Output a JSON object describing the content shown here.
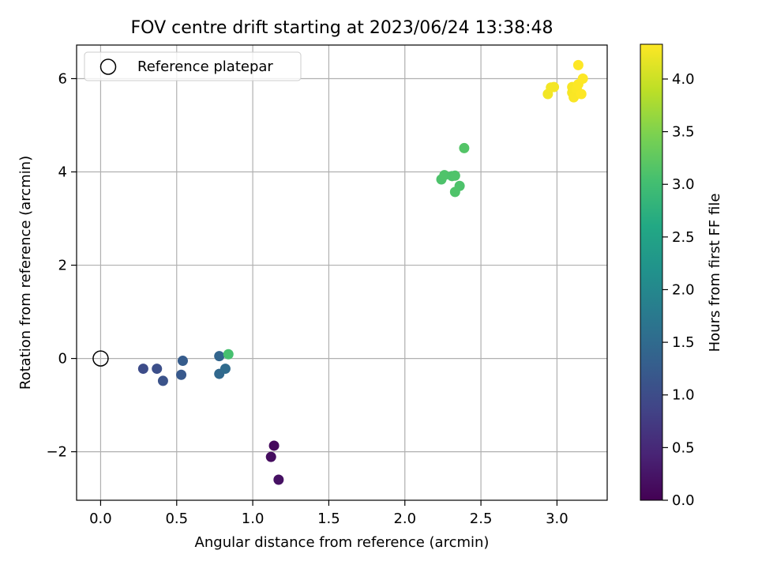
{
  "chart_data": {
    "type": "scatter",
    "title": "FOV centre drift starting at 2023/06/24 13:38:48",
    "xlabel": "Angular distance from reference (arcmin)",
    "ylabel": "Rotation from reference (arcmin)",
    "xlim": [
      -0.158,
      3.33
    ],
    "ylim": [
      -3.04,
      6.72
    ],
    "xticks": [
      0.0,
      0.5,
      1.0,
      1.5,
      2.0,
      2.5,
      3.0
    ],
    "xtick_labels": [
      "0.0",
      "0.5",
      "1.0",
      "1.5",
      "2.0",
      "2.5",
      "3.0"
    ],
    "yticks": [
      -2,
      0,
      2,
      4,
      6
    ],
    "ytick_labels": [
      "−2",
      "0",
      "2",
      "4",
      "6"
    ],
    "grid": true,
    "legend": {
      "location": "upper-left",
      "entries": [
        "Reference platepar"
      ]
    },
    "reference_point": {
      "x": 0.0,
      "y": 0.0
    },
    "colorbar": {
      "label": "Hours from first FF file",
      "colormap": "viridis",
      "range": [
        0.0,
        4.33
      ],
      "ticks": [
        0.0,
        0.5,
        1.0,
        1.5,
        2.0,
        2.5,
        3.0,
        3.5,
        4.0
      ],
      "tick_labels": [
        "0.0",
        "0.5",
        "1.0",
        "1.5",
        "2.0",
        "2.5",
        "3.0",
        "3.5",
        "4.0"
      ]
    },
    "points": [
      {
        "x": 1.14,
        "y": -1.87,
        "c": 0.1
      },
      {
        "x": 1.12,
        "y": -2.11,
        "c": 0.15
      },
      {
        "x": 1.17,
        "y": -2.6,
        "c": 0.2
      },
      {
        "x": 0.28,
        "y": -0.22,
        "c": 1.0
      },
      {
        "x": 0.37,
        "y": -0.22,
        "c": 1.05
      },
      {
        "x": 0.41,
        "y": -0.48,
        "c": 1.1
      },
      {
        "x": 0.53,
        "y": -0.35,
        "c": 1.2
      },
      {
        "x": 0.54,
        "y": -0.05,
        "c": 1.25
      },
      {
        "x": 0.78,
        "y": 0.05,
        "c": 1.4
      },
      {
        "x": 0.78,
        "y": -0.33,
        "c": 1.45
      },
      {
        "x": 0.82,
        "y": -0.22,
        "c": 1.5
      },
      {
        "x": 0.84,
        "y": 0.09,
        "c": 3.05
      },
      {
        "x": 2.24,
        "y": 3.84,
        "c": 3.1
      },
      {
        "x": 2.26,
        "y": 3.93,
        "c": 3.12
      },
      {
        "x": 2.31,
        "y": 3.91,
        "c": 3.1
      },
      {
        "x": 2.33,
        "y": 3.92,
        "c": 3.12
      },
      {
        "x": 2.36,
        "y": 3.7,
        "c": 3.1
      },
      {
        "x": 2.33,
        "y": 3.57,
        "c": 3.12
      },
      {
        "x": 2.39,
        "y": 4.51,
        "c": 3.15
      },
      {
        "x": 2.94,
        "y": 5.67,
        "c": 4.25
      },
      {
        "x": 2.96,
        "y": 5.81,
        "c": 4.26
      },
      {
        "x": 2.98,
        "y": 5.82,
        "c": 4.27
      },
      {
        "x": 3.1,
        "y": 5.7,
        "c": 4.28
      },
      {
        "x": 3.1,
        "y": 5.82,
        "c": 4.29
      },
      {
        "x": 3.11,
        "y": 5.6,
        "c": 4.3
      },
      {
        "x": 3.13,
        "y": 5.78,
        "c": 4.31
      },
      {
        "x": 3.14,
        "y": 5.88,
        "c": 4.32
      },
      {
        "x": 3.16,
        "y": 5.67,
        "c": 4.33
      },
      {
        "x": 3.17,
        "y": 6.0,
        "c": 4.33
      },
      {
        "x": 3.14,
        "y": 6.29,
        "c": 4.33
      }
    ]
  }
}
